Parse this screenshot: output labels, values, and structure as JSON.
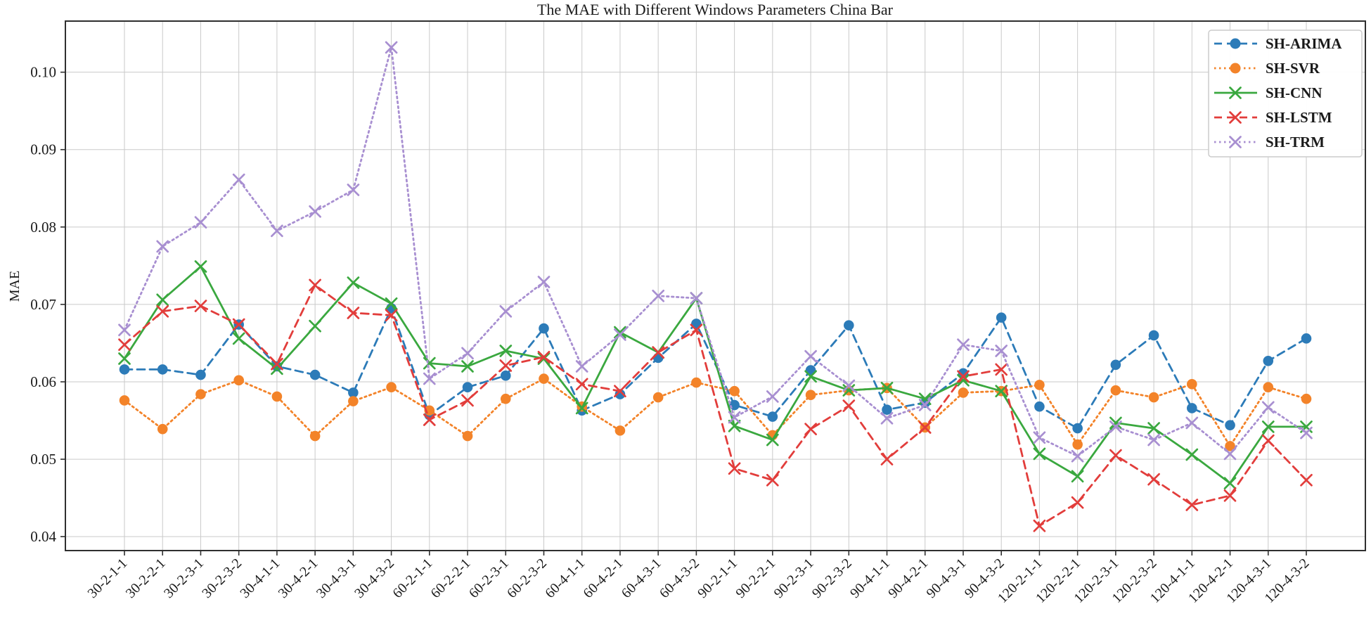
{
  "chart_data": {
    "type": "line",
    "title": "The MAE with Different Windows Parameters China Bar",
    "xlabel": "",
    "ylabel": "MAE",
    "grid": true,
    "legend_position": "upper right",
    "y_ticks": [
      0.04,
      0.05,
      0.06,
      0.07,
      0.08,
      0.09,
      0.1
    ],
    "y_tick_labels": [
      "0.04",
      "0.05",
      "0.06",
      "0.07",
      "0.08",
      "0.09",
      "0.10"
    ],
    "ylim": [
      0.0382,
      0.1066
    ],
    "categories": [
      "30-2-1-1",
      "30-2-2-1",
      "30-2-3-1",
      "30-2-3-2",
      "30-4-1-1",
      "30-4-2-1",
      "30-4-3-1",
      "30-4-3-2",
      "60-2-1-1",
      "60-2-2-1",
      "60-2-3-1",
      "60-2-3-2",
      "60-4-1-1",
      "60-4-2-1",
      "60-4-3-1",
      "60-4-3-2",
      "90-2-1-1",
      "90-2-2-1",
      "90-2-3-1",
      "90-2-3-2",
      "90-4-1-1",
      "90-4-2-1",
      "90-4-3-1",
      "90-4-3-2",
      "120-2-1-1",
      "120-2-2-1",
      "120-2-3-1",
      "120-2-3-2",
      "120-4-1-1",
      "120-4-2-1",
      "120-4-3-1",
      "120-4-3-2"
    ],
    "series": [
      {
        "name": "SH-ARIMA",
        "color": "#2c7bb8",
        "line": "dashed",
        "marker": "circle",
        "values": [
          0.0616,
          0.0616,
          0.0609,
          0.0674,
          0.062,
          0.0609,
          0.0586,
          0.0695,
          0.0557,
          0.0593,
          0.0608,
          0.0669,
          0.0563,
          0.0584,
          0.0631,
          0.0675,
          0.057,
          0.0555,
          0.0615,
          0.0673,
          0.0564,
          0.0573,
          0.0611,
          0.0683,
          0.0568,
          0.054,
          0.0622,
          0.066,
          0.0566,
          0.0544,
          0.0627,
          0.0656
        ]
      },
      {
        "name": "SH-SVR",
        "color": "#f38329",
        "line": "dotted",
        "marker": "circle",
        "values": [
          0.0576,
          0.0539,
          0.0584,
          0.0602,
          0.0581,
          0.053,
          0.0575,
          0.0593,
          0.0563,
          0.053,
          0.0578,
          0.0604,
          0.0568,
          0.0537,
          0.058,
          0.0599,
          0.0588,
          0.0531,
          0.0583,
          0.0589,
          0.0592,
          0.0541,
          0.0586,
          0.0588,
          0.0596,
          0.0519,
          0.0589,
          0.058,
          0.0597,
          0.0517,
          0.0593,
          0.0578
        ]
      },
      {
        "name": "SH-CNN",
        "color": "#3aa83f",
        "line": "solid",
        "marker": "x",
        "values": [
          0.063,
          0.0706,
          0.0749,
          0.0656,
          0.0617,
          0.0672,
          0.0728,
          0.0701,
          0.0624,
          0.062,
          0.064,
          0.063,
          0.0566,
          0.0664,
          0.0638,
          0.0708,
          0.0543,
          0.0525,
          0.0607,
          0.0589,
          0.0592,
          0.0578,
          0.0602,
          0.0588,
          0.0507,
          0.0478,
          0.0547,
          0.054,
          0.0506,
          0.0469,
          0.0542,
          0.0542
        ]
      },
      {
        "name": "SH-LSTM",
        "color": "#e23d3b",
        "line": "dashed",
        "marker": "x",
        "values": [
          0.0648,
          0.0691,
          0.0698,
          0.0674,
          0.0623,
          0.0725,
          0.0689,
          0.0686,
          0.0551,
          0.0576,
          0.0621,
          0.0632,
          0.0597,
          0.0588,
          0.0638,
          0.0667,
          0.0488,
          0.0473,
          0.0539,
          0.0569,
          0.05,
          0.0541,
          0.0607,
          0.0616,
          0.0414,
          0.0444,
          0.0505,
          0.0474,
          0.0441,
          0.0453,
          0.0524,
          0.0473
        ]
      },
      {
        "name": "SH-TRM",
        "color": "#a88fd1",
        "line": "dotted",
        "marker": "x",
        "values": [
          0.0667,
          0.0775,
          0.0806,
          0.0861,
          0.0795,
          0.082,
          0.0848,
          0.1032,
          0.0604,
          0.0637,
          0.0691,
          0.0729,
          0.062,
          0.0661,
          0.0711,
          0.0708,
          0.0554,
          0.0581,
          0.0633,
          0.0595,
          0.0553,
          0.057,
          0.0648,
          0.064,
          0.0528,
          0.0504,
          0.0542,
          0.0525,
          0.0547,
          0.0507,
          0.0567,
          0.0534
        ]
      }
    ],
    "style": {
      "grid_color": "#cacaca",
      "spine_color": "#2f2f2f",
      "background": "#ffffff",
      "legend_border": "#cccccc"
    }
  }
}
